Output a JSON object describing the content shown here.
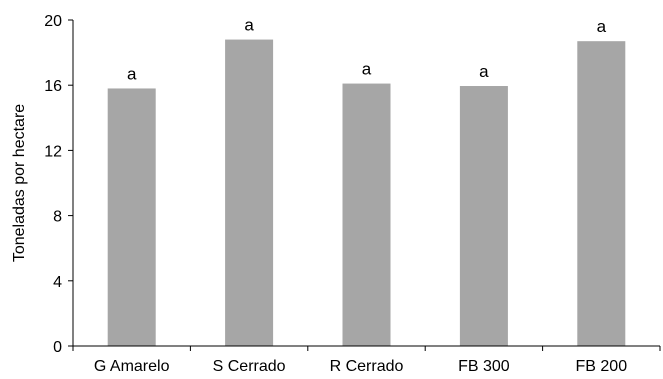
{
  "chart_data": {
    "type": "bar",
    "categories": [
      "G Amarelo",
      "S Cerrado",
      "R Cerrado",
      "FB 300",
      "FB 200"
    ],
    "values": [
      15.8,
      18.8,
      16.1,
      15.95,
      18.7
    ],
    "data_labels": [
      "a",
      "a",
      "a",
      "a",
      "a"
    ],
    "ylabel": "Toneladas por hectare",
    "xlabel": "",
    "ylim": [
      0,
      20
    ],
    "yticks": [
      0,
      4,
      8,
      12,
      16,
      20
    ],
    "grid": false,
    "bar_color": "#a6a6a6",
    "axis_color": "#000000"
  }
}
